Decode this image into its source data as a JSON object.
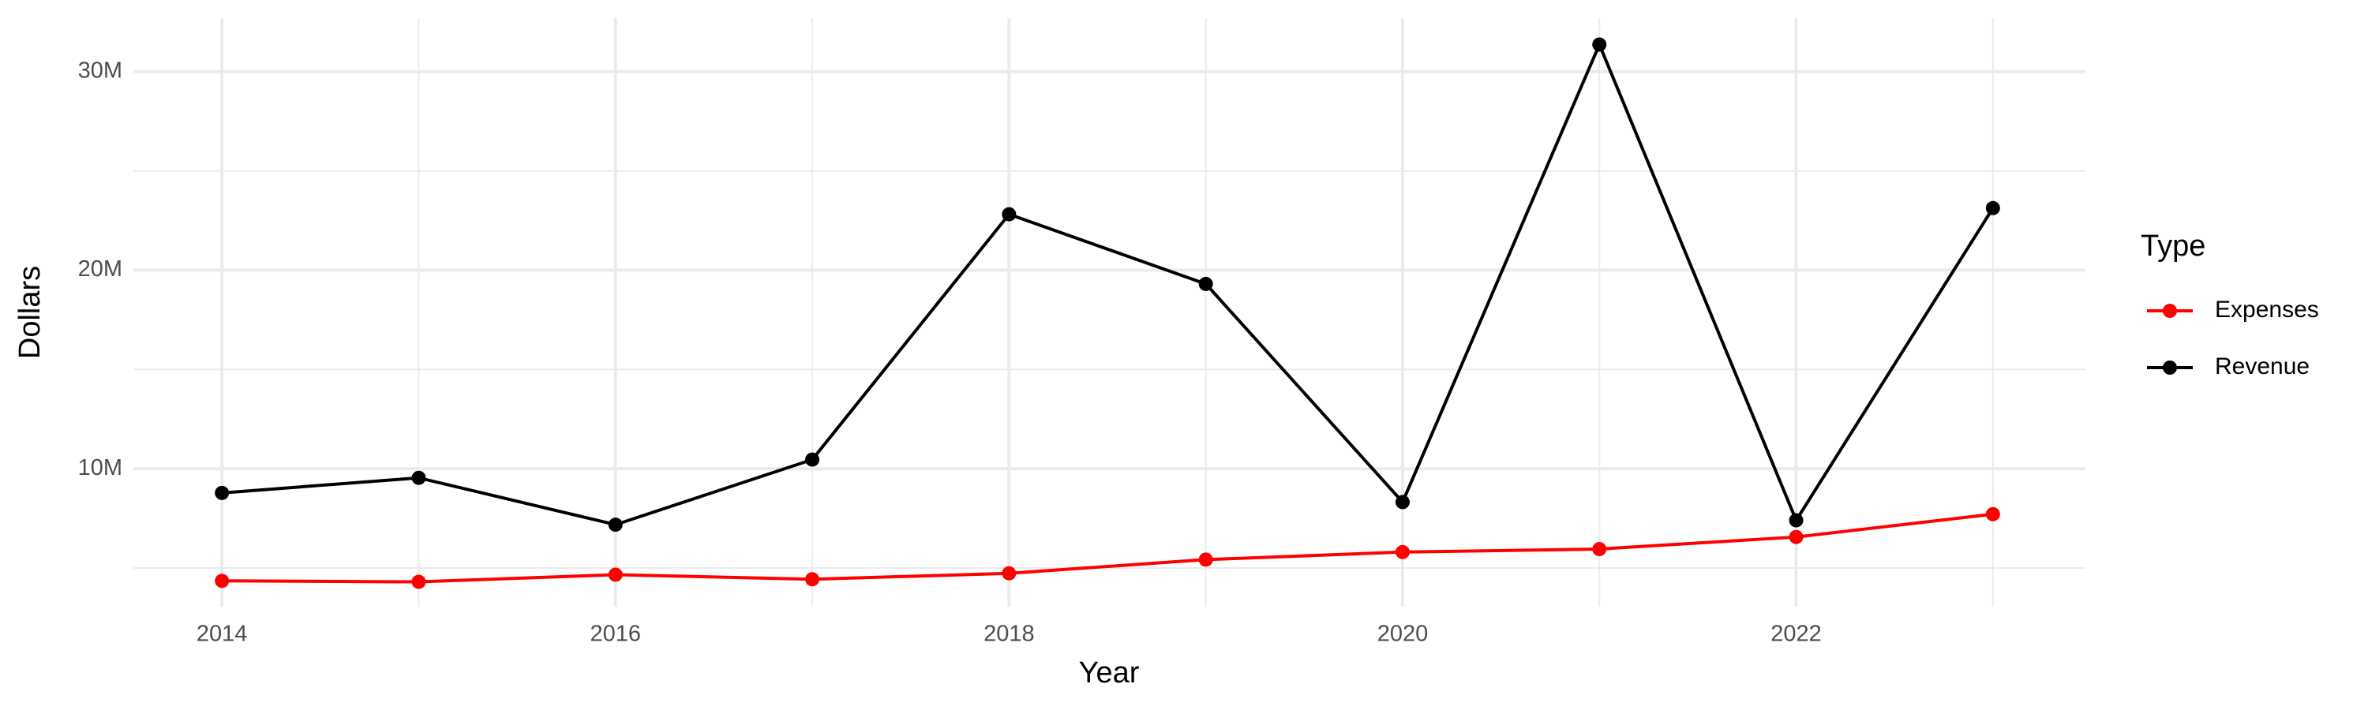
{
  "chart_data": {
    "type": "line",
    "x_label": "Year",
    "y_label": "Dollars",
    "legend_title": "Type",
    "legend": "right",
    "grid": true,
    "x": [
      2014,
      2015,
      2016,
      2017,
      2018,
      2019,
      2020,
      2021,
      2022,
      2023
    ],
    "series": [
      {
        "name": "Expenses",
        "color": "#ff0000",
        "values": [
          4350000,
          4300000,
          4660000,
          4430000,
          4730000,
          5420000,
          5800000,
          5950000,
          6560000,
          7710000
        ]
      },
      {
        "name": "Revenue",
        "color": "#000000",
        "values": [
          8780000,
          9540000,
          7180000,
          10460000,
          22820000,
          19310000,
          8320000,
          31370000,
          7400000,
          23130000
        ]
      }
    ],
    "xlim": [
      2013.55,
      2023.47
    ],
    "xticks": [
      2014,
      2016,
      2018,
      2020,
      2022
    ],
    "ylim": [
      3050000,
      32700000
    ],
    "yticks": [
      {
        "value": 10000000,
        "label": "10M"
      },
      {
        "value": 20000000,
        "label": "20M"
      },
      {
        "value": 30000000,
        "label": "30M"
      }
    ]
  }
}
